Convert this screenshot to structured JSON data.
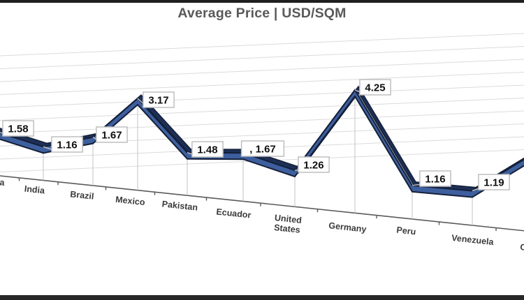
{
  "frame": {
    "top_bar_color": "#1f1f1f",
    "bottom_bar_color": "#282828"
  },
  "chart_data": {
    "type": "line",
    "style": "3d-ribbon-perspective",
    "title": "Average Price | USD/SQM",
    "title_color": "#595959",
    "categories": [
      "a",
      "India",
      "Brazil",
      "Mexico",
      "Pakistan",
      "Ecuador",
      "United States",
      "Germany",
      "Peru",
      "Venezuela",
      "C"
    ],
    "categories_note": "first category ends with visible letter 'a' and last begins with 'C'; both cropped at image edges",
    "values": [
      1.58,
      1.16,
      1.67,
      3.17,
      1.48,
      1.67,
      1.26,
      4.25,
      1.16,
      1.19,
      null
    ],
    "data_labels": [
      "1.58",
      "1.16",
      "1.67",
      "3.17",
      "1.48",
      ", 1.67",
      "1.26",
      "4.25",
      "1.16",
      "1.19",
      null
    ],
    "ylim": [
      0,
      5
    ],
    "grid": "on",
    "legend": "none",
    "series_color": "#3E5F9E",
    "series_depth_color": "#1D2F55",
    "series_edge_color": "#141F38",
    "gridline_color": "#DBDBDB",
    "axis_color": "#5a5a5a",
    "leader_color": "#C3C3C3",
    "category_label_color": "#3A3A3A",
    "label_box": {
      "fill": "#FFFFFF",
      "border": "#BFBFBF",
      "text_color": "#111111"
    }
  }
}
